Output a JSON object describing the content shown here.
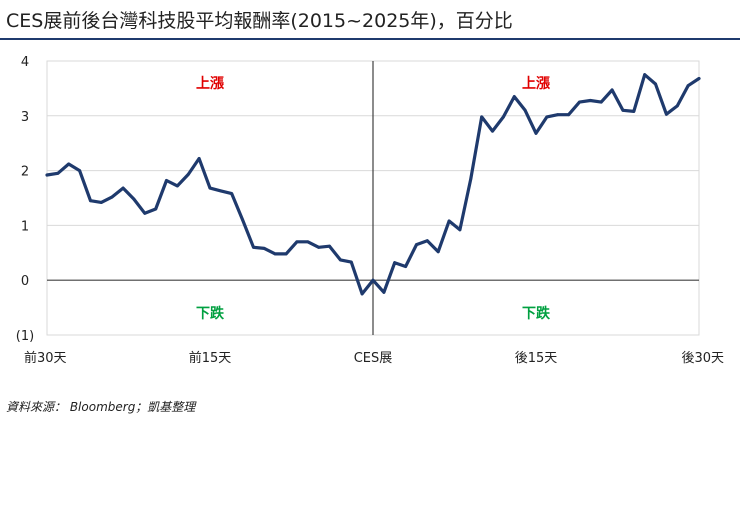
{
  "title": "CES展前後台灣科技股平均報酬率(2015~2025年)，百分比",
  "source": "資料來源： Bloomberg；凱基整理",
  "colors": {
    "title_rule": "#1f3a6d",
    "line": "#1f3a6d",
    "up_label": "#e00000",
    "down_label": "#00a040",
    "grid": "#d9d9d9",
    "axis": "#404040"
  },
  "chart_data": {
    "type": "line",
    "title": "CES展前後台灣科技股平均報酬率(2015~2025年)，百分比",
    "xlabel": "",
    "ylabel": "",
    "ylim": [
      -1,
      4
    ],
    "xlim": [
      -30,
      30
    ],
    "grid": true,
    "legend": "none",
    "y_ticks": [
      4,
      3,
      2,
      1,
      0,
      -1
    ],
    "y_tick_labels": [
      "4",
      "3",
      "2",
      "1",
      "0",
      "(1)"
    ],
    "x_ticks": [
      -30,
      -15,
      0,
      15,
      30
    ],
    "x_tick_labels": [
      "前30天",
      "前15天",
      "CES展",
      "後15天",
      "後30天"
    ],
    "annotations": [
      {
        "text": "上漲",
        "kind": "up",
        "x": -15,
        "y": 3.6
      },
      {
        "text": "上漲",
        "kind": "up",
        "x": 15,
        "y": 3.6
      },
      {
        "text": "下跌",
        "kind": "down",
        "x": -15,
        "y": -0.6
      },
      {
        "text": "下跌",
        "kind": "down",
        "x": 15,
        "y": -0.6
      }
    ],
    "series": [
      {
        "x": [
          -30,
          -29,
          -28,
          -27,
          -26,
          -25,
          -24,
          -23,
          -22,
          -21,
          -20,
          -19,
          -18,
          -17,
          -16,
          -15,
          -14,
          -13,
          -12,
          -11,
          -10,
          -9,
          -8,
          -7,
          -6,
          -5,
          -4,
          -3,
          -2,
          -1,
          0,
          1,
          2,
          3,
          4,
          5,
          6,
          7,
          8,
          9,
          10,
          11,
          12,
          13,
          14,
          15,
          16,
          17,
          18,
          19,
          20,
          21,
          22,
          23,
          24,
          25,
          26,
          27,
          28,
          29,
          30
        ],
        "values": [
          1.92,
          1.95,
          2.12,
          2.0,
          1.45,
          1.42,
          1.52,
          1.68,
          1.48,
          1.22,
          1.3,
          1.82,
          1.72,
          1.93,
          2.22,
          1.68,
          1.63,
          1.58,
          1.1,
          0.6,
          0.58,
          0.48,
          0.48,
          0.7,
          0.7,
          0.6,
          0.62,
          0.37,
          0.33,
          -0.25,
          0.0,
          -0.22,
          0.32,
          0.25,
          0.65,
          0.72,
          0.52,
          1.08,
          0.92,
          1.85,
          2.98,
          2.72,
          2.98,
          3.35,
          3.1,
          2.68,
          2.98,
          3.02,
          3.02,
          3.25,
          3.28,
          3.25,
          3.47,
          3.1,
          3.08,
          3.75,
          3.58,
          3.03,
          3.18,
          3.55,
          3.68
        ]
      }
    ]
  }
}
